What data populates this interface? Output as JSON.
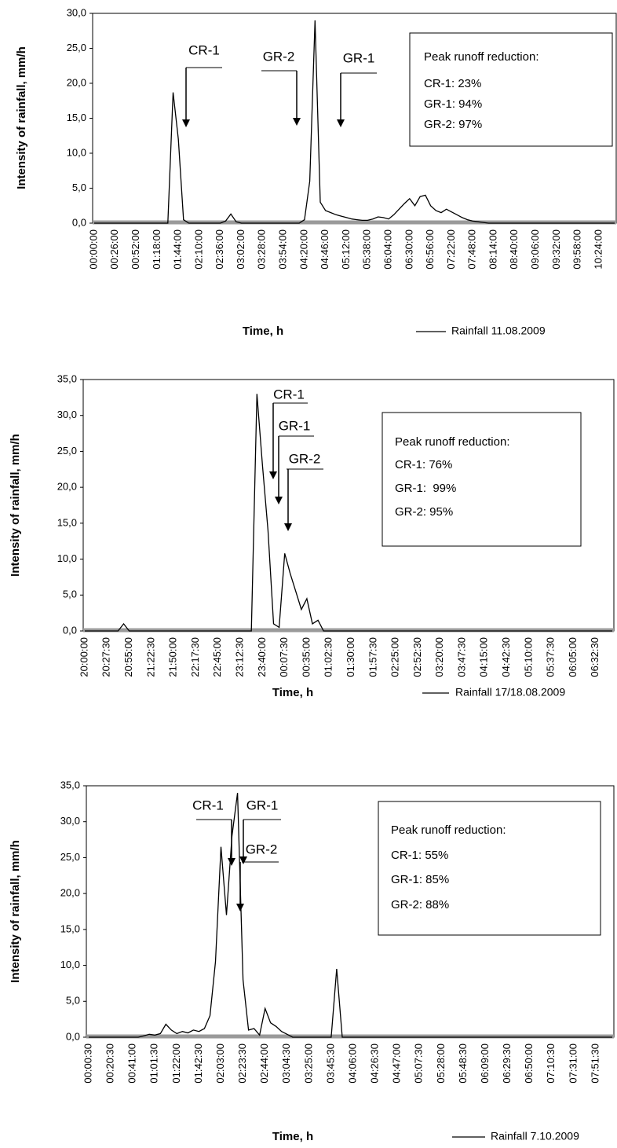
{
  "chart_data": [
    {
      "type": "line",
      "y_label": "Intensity of rainfall, mm/h",
      "x_label": "Time, h",
      "categories": [
        "00:00:00",
        null,
        null,
        null,
        "00:26:00",
        null,
        null,
        null,
        "00:52:00",
        null,
        null,
        null,
        "01:18:00",
        null,
        null,
        null,
        "01:44:00",
        null,
        null,
        null,
        "02:10:00",
        null,
        null,
        null,
        "02:36:00",
        null,
        null,
        null,
        "03:02:00",
        null,
        null,
        null,
        "03:28:00",
        null,
        null,
        null,
        "03:54:00",
        null,
        null,
        null,
        "04:20:00",
        null,
        null,
        null,
        "04:46:00",
        null,
        null,
        null,
        "05:12:00",
        null,
        null,
        null,
        "05:38:00",
        null,
        null,
        null,
        "06:04:00",
        null,
        null,
        null,
        "06:30:00",
        null,
        null,
        null,
        "06:56:00",
        null,
        null,
        null,
        "07:22:00",
        null,
        null,
        null,
        "07:48:00",
        null,
        null,
        null,
        "08:14:00",
        null,
        null,
        null,
        "08:40:00",
        null,
        null,
        null,
        "09:06:00",
        null,
        null,
        null,
        "09:32:00",
        null,
        null,
        null,
        "09:58:00",
        null,
        null,
        null,
        "10:24:00",
        null,
        null,
        null
      ],
      "series": [
        {
          "name": "Rainfall 11.08.2009",
          "color": "#000000",
          "values": [
            0,
            0,
            0,
            0,
            0,
            0,
            0,
            0,
            0,
            0,
            0,
            0,
            0,
            0,
            0,
            18.7,
            12,
            0.5,
            0,
            0,
            0,
            0,
            0,
            0,
            0,
            0.3,
            1.3,
            0.2,
            0,
            0,
            0,
            0,
            0,
            0,
            0,
            0,
            0,
            0,
            0,
            0,
            0.5,
            6,
            29,
            3,
            1.8,
            1.5,
            1.2,
            1,
            0.8,
            0.6,
            0.5,
            0.4,
            0.4,
            0.6,
            0.9,
            0.8,
            0.6,
            1.2,
            2,
            2.8,
            3.5,
            2.5,
            3.8,
            4,
            2.5,
            1.8,
            1.5,
            2,
            1.6,
            1.2,
            0.8,
            0.5,
            0.3,
            0.2,
            0.1,
            0,
            0,
            0,
            0,
            0,
            0,
            0,
            0,
            0,
            0,
            0,
            0,
            0,
            0,
            0,
            0,
            0,
            0,
            0,
            0,
            0,
            0,
            0,
            0,
            0
          ]
        }
      ],
      "ylim": [
        0,
        30
      ],
      "yticks": [
        {
          "value": 0,
          "label": "0,0"
        },
        {
          "value": 5,
          "label": "5,0"
        },
        {
          "value": 10,
          "label": "10,0"
        },
        {
          "value": 15,
          "label": "15,0"
        },
        {
          "value": 20,
          "label": "20,0"
        },
        {
          "value": 25,
          "label": "25,0"
        },
        {
          "value": 30,
          "label": "30,0"
        }
      ],
      "annotations": [
        "CR-1",
        "GR-2",
        "GR-1"
      ],
      "box_title": "Peak runoff reduction:",
      "box_lines": [
        "CR-1: 23%",
        "GR-1: 94%",
        "GR-2: 97%"
      ]
    },
    {
      "type": "line",
      "y_label": "Intensity of rainfall, mm/h",
      "x_label": "Time, h",
      "categories": [
        "20:00:00",
        null,
        null,
        null,
        "20:27:30",
        null,
        null,
        null,
        "20:55:00",
        null,
        null,
        null,
        "21:22:30",
        null,
        null,
        null,
        "21:50:00",
        null,
        null,
        null,
        "22:17:30",
        null,
        null,
        null,
        "22:45:00",
        null,
        null,
        null,
        "23:12:30",
        null,
        null,
        null,
        "23:40:00",
        null,
        null,
        null,
        "00:07:30",
        null,
        null,
        null,
        "00:35:00",
        null,
        null,
        null,
        "01:02:30",
        null,
        null,
        null,
        "01:30:00",
        null,
        null,
        null,
        "01:57:30",
        null,
        null,
        null,
        "02:25:00",
        null,
        null,
        null,
        "02:52:30",
        null,
        null,
        null,
        "03:20:00",
        null,
        null,
        null,
        "03:47:30",
        null,
        null,
        null,
        "04:15:00",
        null,
        null,
        null,
        "04:42:30",
        null,
        null,
        null,
        "05:10:00",
        null,
        null,
        null,
        "05:37:30",
        null,
        null,
        null,
        "06:05:00",
        null,
        null,
        null,
        "06:32:30",
        null,
        null,
        null
      ],
      "series": [
        {
          "name": "Rainfall 17/18.08.2009",
          "color": "#000000",
          "values": [
            0,
            0,
            0,
            0,
            0,
            0,
            0,
            1,
            0,
            0,
            0,
            0,
            0,
            0,
            0,
            0,
            0,
            0,
            0,
            0,
            0,
            0,
            0,
            0,
            0,
            0,
            0,
            0,
            0,
            0,
            0,
            33,
            23,
            14,
            1,
            0.5,
            10.8,
            8,
            5.5,
            3,
            4.5,
            1,
            1.5,
            0,
            0,
            0,
            0,
            0,
            0,
            0,
            0,
            0,
            0,
            0,
            0,
            0,
            0,
            0,
            0,
            0,
            0,
            0,
            0,
            0,
            0,
            0,
            0,
            0,
            0,
            0,
            0,
            0,
            0,
            0,
            0,
            0,
            0,
            0,
            0,
            0,
            0,
            0,
            0,
            0,
            0,
            0,
            0,
            0,
            0,
            0,
            0,
            0,
            0,
            0,
            0,
            0
          ]
        }
      ],
      "ylim": [
        0,
        35
      ],
      "yticks": [
        {
          "value": 0,
          "label": "0,0"
        },
        {
          "value": 5,
          "label": "5,0"
        },
        {
          "value": 10,
          "label": "10,0"
        },
        {
          "value": 15,
          "label": "15,0"
        },
        {
          "value": 20,
          "label": "20,0"
        },
        {
          "value": 25,
          "label": "25,0"
        },
        {
          "value": 30,
          "label": "30,0"
        },
        {
          "value": 35,
          "label": "35,0"
        }
      ],
      "annotations": [
        "CR-1",
        "GR-1",
        "GR-2"
      ],
      "box_title": "Peak runoff reduction:",
      "box_lines": [
        "CR-1: 76%",
        "GR-1:  99%",
        "GR-2: 95%"
      ]
    },
    {
      "type": "line",
      "y_label": "Intensity of rainfall, mm/h",
      "x_label": "Time, h",
      "categories": [
        "00:00:30",
        null,
        null,
        null,
        "00:20:30",
        null,
        null,
        null,
        "00:41:00",
        null,
        null,
        null,
        "01:01:30",
        null,
        null,
        null,
        "01:22:00",
        null,
        null,
        null,
        "01:42:30",
        null,
        null,
        null,
        "02:03:00",
        null,
        null,
        null,
        "02:23:30",
        null,
        null,
        null,
        "02:44:00",
        null,
        null,
        null,
        "03:04:30",
        null,
        null,
        null,
        "03:25:00",
        null,
        null,
        null,
        "03:45:30",
        null,
        null,
        null,
        "04:06:00",
        null,
        null,
        null,
        "04:26:30",
        null,
        null,
        null,
        "04:47:00",
        null,
        null,
        null,
        "05:07:30",
        null,
        null,
        null,
        "05:28:00",
        null,
        null,
        null,
        "05:48:30",
        null,
        null,
        null,
        "06:09:00",
        null,
        null,
        null,
        "06:29:30",
        null,
        null,
        null,
        "06:50:00",
        null,
        null,
        null,
        "07:10:30",
        null,
        null,
        null,
        "07:31:00",
        null,
        null,
        null,
        "07:51:30",
        null,
        null,
        null
      ],
      "series": [
        {
          "name": "Rainfall 7.10.2009",
          "color": "#000000",
          "values": [
            0,
            0,
            0,
            0,
            0,
            0,
            0,
            0,
            0,
            0,
            0.2,
            0.4,
            0.3,
            0.5,
            1.8,
            1,
            0.5,
            0.8,
            0.6,
            1,
            0.8,
            1.2,
            3,
            10.5,
            26.5,
            17,
            28,
            34,
            8,
            1,
            1.2,
            0.3,
            4,
            2,
            1.5,
            0.8,
            0.4,
            0,
            0,
            0,
            0,
            0,
            0,
            0,
            0,
            9.5,
            0,
            0,
            0,
            0,
            0,
            0,
            0,
            0,
            0,
            0,
            0,
            0,
            0,
            0,
            0,
            0,
            0,
            0,
            0,
            0,
            0,
            0,
            0,
            0,
            0,
            0,
            0,
            0,
            0,
            0,
            0,
            0,
            0,
            0,
            0,
            0,
            0,
            0,
            0,
            0,
            0,
            0,
            0,
            0,
            0,
            0,
            0,
            0,
            0,
            0
          ]
        }
      ],
      "ylim": [
        0,
        35
      ],
      "yticks": [
        {
          "value": 0,
          "label": "0,0"
        },
        {
          "value": 5,
          "label": "5,0"
        },
        {
          "value": 10,
          "label": "10,0"
        },
        {
          "value": 15,
          "label": "15,0"
        },
        {
          "value": 20,
          "label": "20,0"
        },
        {
          "value": 25,
          "label": "25,0"
        },
        {
          "value": 30,
          "label": "30,0"
        },
        {
          "value": 35,
          "label": "35,0"
        }
      ],
      "annotations": [
        "CR-1",
        "GR-1",
        "GR-2"
      ],
      "box_title": "Peak runoff reduction:",
      "box_lines": [
        "CR-1: 55%",
        "GR-1: 85%",
        "GR-2: 88%"
      ]
    }
  ]
}
